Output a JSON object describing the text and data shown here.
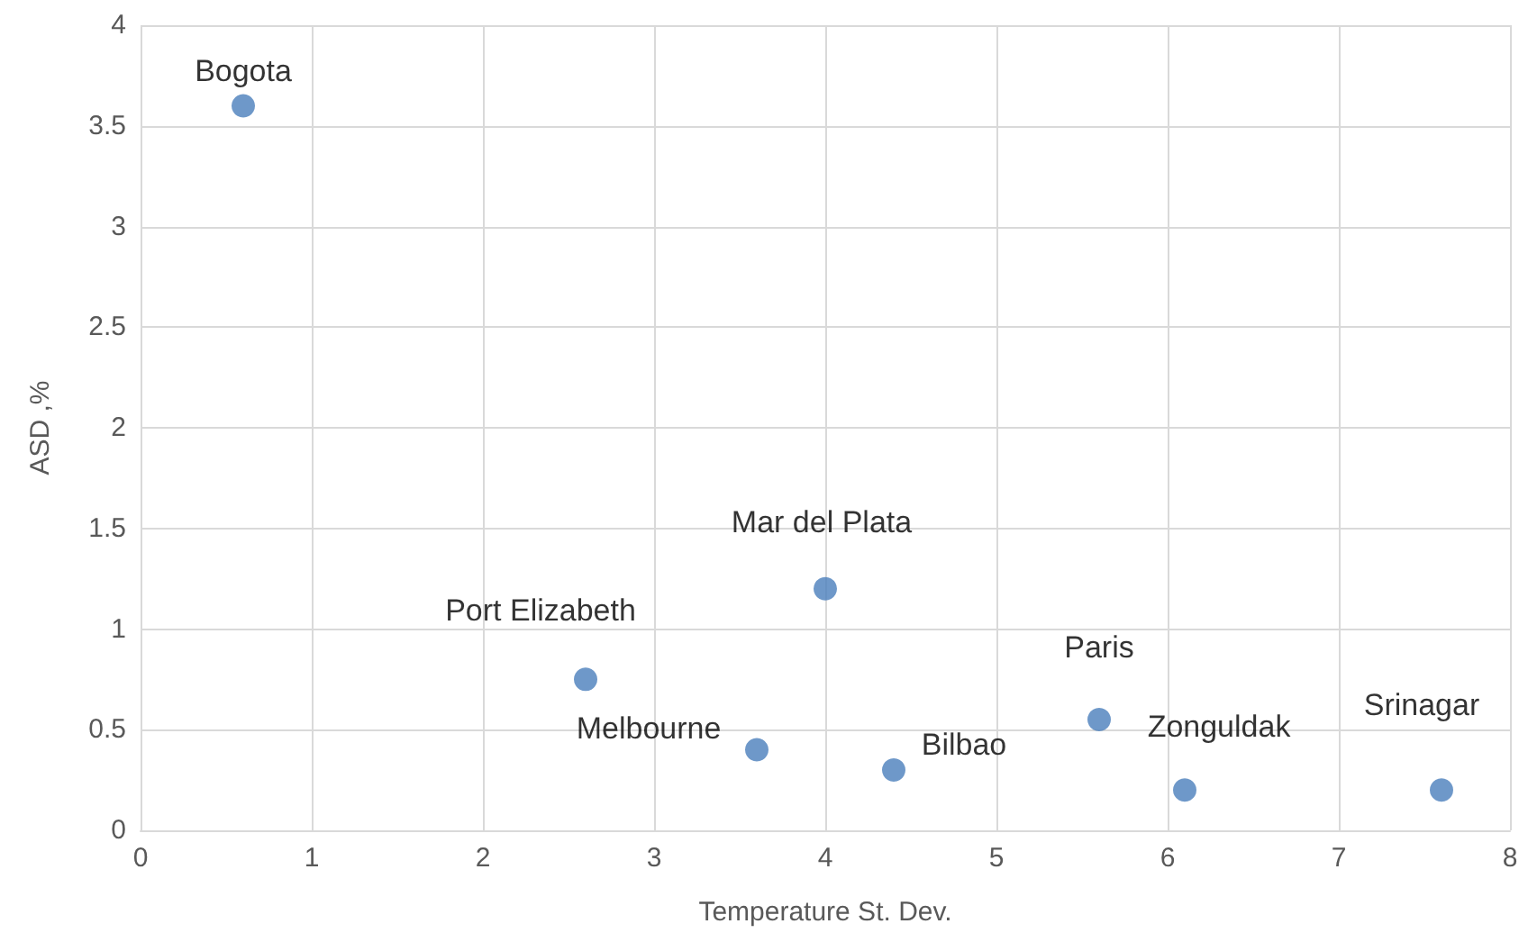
{
  "chart_data": {
    "type": "scatter",
    "xlabel": "Temperature St. Dev.",
    "ylabel": "ASD ,%",
    "x": [
      0.6,
      2.6,
      3.6,
      4.0,
      4.4,
      5.6,
      6.1,
      7.6
    ],
    "values": [
      3.6,
      0.75,
      0.4,
      1.2,
      0.3,
      0.55,
      0.2,
      0.2
    ],
    "color": "#4a7ebb",
    "marker": "circle",
    "grid": true,
    "xlim": [
      0,
      8
    ],
    "xticks": [
      0,
      1,
      2,
      3,
      4,
      5,
      6,
      7,
      8
    ],
    "ylim": [
      0,
      4
    ],
    "yticks": [
      0,
      0.5,
      1,
      1.5,
      2,
      2.5,
      3,
      3.5,
      4
    ],
    "annotations": [
      {
        "text": "Bogota",
        "x": 0.6,
        "y": 3.6
      },
      {
        "text": "Port Elizabeth",
        "x": 2.6,
        "y": 0.75
      },
      {
        "text": "Melbourne",
        "x": 3.6,
        "y": 0.4
      },
      {
        "text": "Mar del Plata",
        "x": 4.0,
        "y": 1.2
      },
      {
        "text": "Bilbao",
        "x": 4.4,
        "y": 0.3
      },
      {
        "text": "Paris",
        "x": 5.6,
        "y": 0.55
      },
      {
        "text": "Zonguldak",
        "x": 6.1,
        "y": 0.2
      },
      {
        "text": "Srinagar",
        "x": 7.6,
        "y": 0.2
      }
    ]
  }
}
